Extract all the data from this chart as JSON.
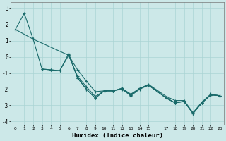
{
  "xlabel": "Humidex (Indice chaleur)",
  "bg_color": "#cce8e8",
  "grid_color": "#aad4d4",
  "line_color": "#1a6b6b",
  "xlim": [
    -0.5,
    23.5
  ],
  "ylim": [
    -4.2,
    3.4
  ],
  "yticks": [
    -4,
    -3,
    -2,
    -1,
    0,
    1,
    2,
    3
  ],
  "xticks": [
    0,
    1,
    2,
    3,
    4,
    5,
    6,
    7,
    8,
    9,
    10,
    11,
    12,
    13,
    14,
    15,
    17,
    18,
    19,
    20,
    21,
    22,
    23
  ],
  "xtick_labels": [
    "0",
    "1",
    "2",
    "3",
    "4",
    "5",
    "6",
    "7",
    "8",
    "9",
    "10",
    "11",
    "12",
    "13",
    "14",
    "15",
    "17",
    "18",
    "19",
    "20",
    "21",
    "22",
    "23"
  ],
  "lines": [
    {
      "x": [
        0,
        1,
        2,
        6,
        7,
        8,
        9,
        10,
        11,
        12,
        13,
        14,
        15,
        17,
        18,
        19,
        20,
        21,
        22,
        23
      ],
      "y": [
        1.7,
        2.7,
        1.1,
        0.1,
        -1.2,
        -1.85,
        -2.45,
        -2.1,
        -2.1,
        -2.0,
        -2.4,
        -2.0,
        -1.75,
        -2.55,
        -2.85,
        -2.75,
        -3.5,
        -2.85,
        -2.35,
        -2.4
      ]
    },
    {
      "x": [
        0,
        2,
        3,
        4,
        5,
        6,
        7,
        8,
        9,
        10,
        11,
        12,
        13,
        14,
        15,
        17,
        18,
        19,
        20,
        21,
        22,
        23
      ],
      "y": [
        1.7,
        1.1,
        -0.75,
        -0.8,
        -0.85,
        0.1,
        -0.8,
        -1.5,
        -2.15,
        -2.1,
        -2.1,
        -1.95,
        -2.3,
        -1.95,
        -1.7,
        -2.45,
        -2.7,
        -2.7,
        -3.45,
        -2.8,
        -2.3,
        -2.4
      ]
    },
    {
      "x": [
        3,
        4,
        5,
        6,
        7,
        8,
        9,
        10,
        11,
        12,
        13,
        14,
        15,
        17,
        18,
        19,
        20,
        21,
        22,
        23
      ],
      "y": [
        -0.75,
        -0.8,
        -0.85,
        0.2,
        -1.3,
        -2.0,
        -2.55,
        -2.1,
        -2.1,
        -1.95,
        -2.35,
        -1.95,
        -1.75,
        -2.55,
        -2.85,
        -2.75,
        -3.5,
        -2.85,
        -2.35,
        -2.4
      ]
    },
    {
      "x": [
        6,
        7,
        8,
        9,
        10,
        11,
        12,
        13,
        14,
        15,
        17,
        18,
        19,
        20,
        21,
        22,
        23
      ],
      "y": [
        0.15,
        -1.3,
        -2.0,
        -2.55,
        -2.1,
        -2.1,
        -1.95,
        -2.35,
        -1.95,
        -1.75,
        -2.55,
        -2.85,
        -2.75,
        -3.5,
        -2.85,
        -2.35,
        -2.4
      ]
    }
  ]
}
